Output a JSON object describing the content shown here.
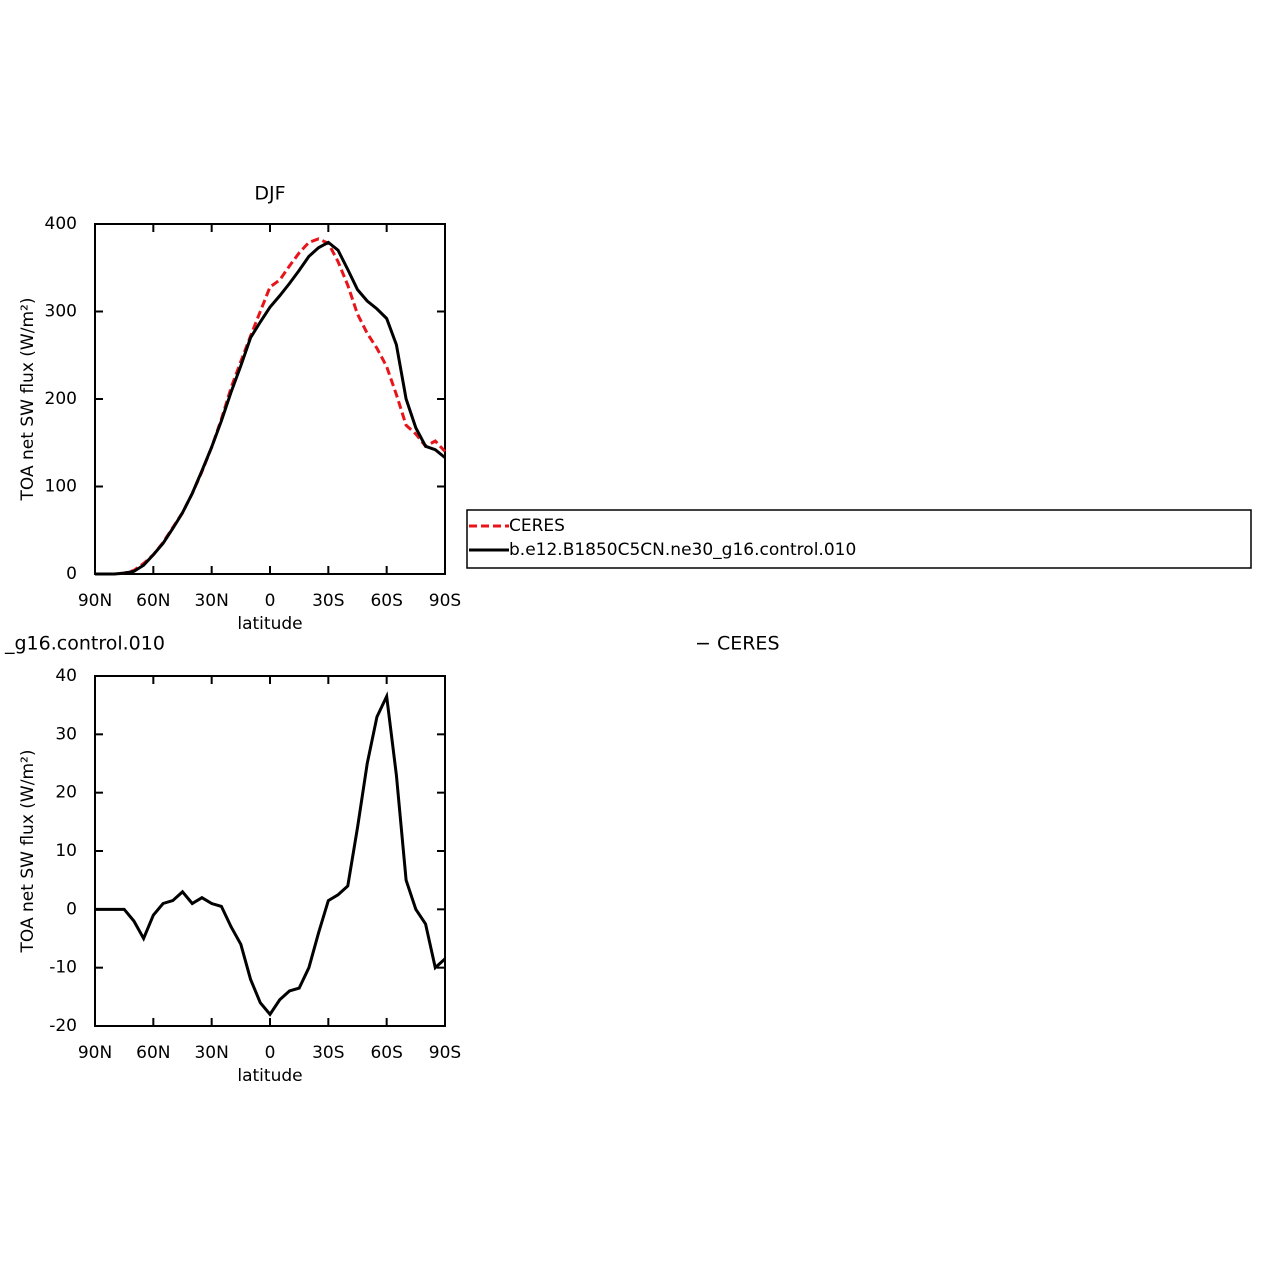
{
  "chart_data": [
    {
      "type": "line",
      "title": "DJF",
      "xlabel": "latitude",
      "ylabel": "TOA net SW flux (W/m²)",
      "x": [
        90,
        85,
        80,
        75,
        70,
        65,
        60,
        55,
        50,
        45,
        40,
        35,
        30,
        25,
        20,
        15,
        10,
        5,
        0,
        -5,
        -10,
        -15,
        -20,
        -25,
        -30,
        -35,
        -40,
        -45,
        -50,
        -55,
        -60,
        -65,
        -70,
        -75,
        -80,
        -85,
        -90
      ],
      "xlim": [
        90,
        -90
      ],
      "xticks": [
        {
          "value": 90,
          "label": "90N"
        },
        {
          "value": 60,
          "label": "60N"
        },
        {
          "value": 30,
          "label": "30N"
        },
        0,
        {
          "value": -30,
          "label": "30S"
        },
        {
          "value": -60,
          "label": "60S"
        },
        {
          "value": -90,
          "label": "90S"
        }
      ],
      "ylim": [
        0,
        400
      ],
      "yticks": [
        0,
        100,
        200,
        300,
        400
      ],
      "legend": "right",
      "series": [
        {
          "name": "CERES",
          "color": "#e8141a",
          "dashed": true,
          "values": [
            0,
            0,
            0,
            1,
            4,
            12,
            22,
            36,
            53,
            70,
            92,
            117,
            145,
            177,
            213,
            243,
            272,
            300,
            328,
            336,
            352,
            367,
            379,
            383,
            378,
            357,
            330,
            297,
            275,
            258,
            237,
            205,
            170,
            160,
            146,
            152,
            140
          ]
        },
        {
          "name": "b.e12.B1850C5CN.ne30_g16.control.010",
          "color": "#000000",
          "dashed": false,
          "values": [
            0,
            0,
            0,
            1,
            3,
            10,
            22,
            35,
            52,
            70,
            92,
            118,
            145,
            175,
            208,
            238,
            270,
            288,
            305,
            318,
            332,
            347,
            363,
            373,
            379,
            370,
            348,
            325,
            312,
            303,
            292,
            262,
            200,
            167,
            146,
            142,
            133
          ]
        }
      ]
    },
    {
      "type": "line",
      "title": "_g16.control.010",
      "subtitle": "− CERES",
      "xlabel": "latitude",
      "ylabel": "TOA net SW flux (W/m²)",
      "x": [
        90,
        85,
        80,
        75,
        70,
        65,
        60,
        55,
        50,
        45,
        40,
        35,
        30,
        25,
        20,
        15,
        10,
        5,
        0,
        -5,
        -10,
        -15,
        -20,
        -25,
        -30,
        -35,
        -40,
        -45,
        -50,
        -55,
        -60,
        -65,
        -70,
        -75,
        -80,
        -85,
        -90
      ],
      "xlim": [
        90,
        -90
      ],
      "xticks": [
        {
          "value": 90,
          "label": "90N"
        },
        {
          "value": 60,
          "label": "60N"
        },
        {
          "value": 30,
          "label": "30N"
        },
        0,
        {
          "value": -30,
          "label": "30S"
        },
        {
          "value": -60,
          "label": "60S"
        },
        {
          "value": -90,
          "label": "90S"
        }
      ],
      "ylim": [
        -20,
        40
      ],
      "yticks": [
        -20,
        -10,
        0,
        10,
        20,
        30,
        40
      ],
      "series": [
        {
          "color": "#000000",
          "dashed": false,
          "values": [
            0,
            0,
            0,
            0,
            -2,
            -5,
            -1,
            1,
            1.5,
            3,
            1,
            2,
            1,
            0.5,
            -3,
            -6,
            -12,
            -16,
            -18,
            -15.5,
            -14,
            -13.5,
            -10,
            -4,
            1.5,
            2.5,
            4,
            14,
            25,
            33,
            36.5,
            23,
            5,
            0,
            -2.5,
            -10,
            -8.5
          ]
        }
      ]
    }
  ]
}
